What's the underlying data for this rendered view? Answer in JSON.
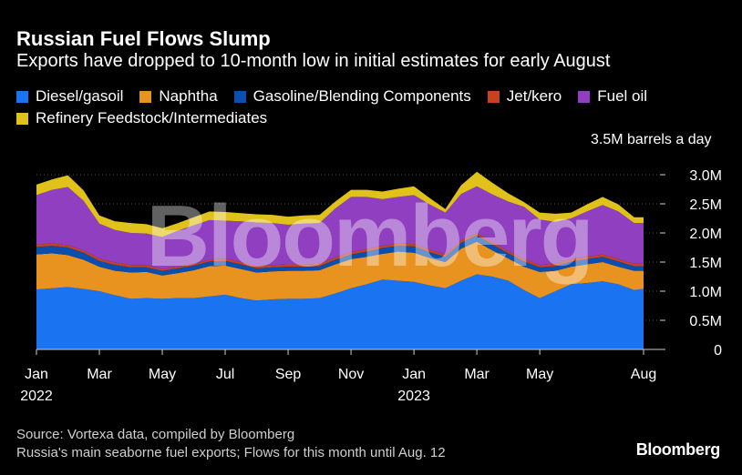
{
  "title": "Russian Fuel Flows Slump",
  "subtitle": "Exports have dropped to 10-month low in initial estimates for early August",
  "unit_label": "3.5M barrels a day",
  "watermark": "Bloomberg",
  "source_line1": "Source: Vortexa data, compiled by Bloomberg",
  "source_line2": "Russia's main seaborne fuel exports; Flows for this month until Aug. 12",
  "brand": "Bloomberg",
  "colors": {
    "diesel": "#1a73f0",
    "naphtha": "#e8931f",
    "gasoline": "#0a4fb0",
    "jet": "#c8421f",
    "fuel_oil": "#8f3fc0",
    "feedstock": "#e0c21a",
    "axis": "#cccccc",
    "grid": "#555555"
  },
  "chart_data": {
    "type": "area",
    "stacked": true,
    "title": "Russian Fuel Flows Slump",
    "ylabel": "barrels a day",
    "ylim": [
      0,
      3.5
    ],
    "y_ticks": [
      {
        "value": 0,
        "label": "0"
      },
      {
        "value": 0.5,
        "label": "0.5M"
      },
      {
        "value": 1.0,
        "label": "1.0M"
      },
      {
        "value": 1.5,
        "label": "1.5M"
      },
      {
        "value": 2.0,
        "label": "2.0M"
      },
      {
        "value": 2.5,
        "label": "2.5M"
      },
      {
        "value": 3.0,
        "label": "3.0M"
      }
    ],
    "x": [
      0,
      0.5,
      1,
      1.5,
      2,
      2.5,
      3,
      3.5,
      4,
      4.5,
      5,
      5.5,
      6,
      6.5,
      7,
      7.5,
      8,
      8.5,
      9,
      9.5,
      10,
      10.5,
      11,
      11.5,
      12,
      12.5,
      13,
      13.5,
      14,
      14.5,
      15,
      15.5,
      16,
      16.5,
      17,
      17.5,
      18,
      18.5,
      19,
      19.3
    ],
    "x_ticks": [
      {
        "value": 0,
        "label": "Jan",
        "sublabel": "2022"
      },
      {
        "value": 2,
        "label": "Mar",
        "sublabel": ""
      },
      {
        "value": 4,
        "label": "May",
        "sublabel": ""
      },
      {
        "value": 6,
        "label": "Jul",
        "sublabel": ""
      },
      {
        "value": 8,
        "label": "Sep",
        "sublabel": ""
      },
      {
        "value": 10,
        "label": "Nov",
        "sublabel": ""
      },
      {
        "value": 12,
        "label": "Jan",
        "sublabel": "2023"
      },
      {
        "value": 14,
        "label": "Mar",
        "sublabel": ""
      },
      {
        "value": 16,
        "label": "May",
        "sublabel": ""
      },
      {
        "value": 19.3,
        "label": "Aug",
        "sublabel": ""
      }
    ],
    "series": [
      {
        "name": "Diesel/gasoil",
        "color": "#1a73f0",
        "values": [
          1.03,
          1.05,
          1.07,
          1.04,
          1.0,
          0.93,
          0.87,
          0.88,
          0.87,
          0.88,
          0.88,
          0.91,
          0.94,
          0.88,
          0.84,
          0.86,
          0.87,
          0.87,
          0.88,
          0.96,
          1.05,
          1.12,
          1.2,
          1.18,
          1.16,
          1.1,
          1.05,
          1.18,
          1.29,
          1.25,
          1.18,
          1.02,
          0.88,
          1.0,
          1.12,
          1.14,
          1.17,
          1.12,
          1.02,
          1.04
        ]
      },
      {
        "name": "Naphtha",
        "color": "#e8931f",
        "values": [
          0.6,
          0.6,
          0.55,
          0.5,
          0.42,
          0.42,
          0.45,
          0.45,
          0.4,
          0.43,
          0.48,
          0.52,
          0.5,
          0.5,
          0.48,
          0.48,
          0.48,
          0.48,
          0.48,
          0.5,
          0.5,
          0.47,
          0.44,
          0.5,
          0.5,
          0.47,
          0.45,
          0.55,
          0.56,
          0.45,
          0.38,
          0.4,
          0.45,
          0.35,
          0.3,
          0.32,
          0.33,
          0.3,
          0.33,
          0.31
        ]
      },
      {
        "name": "Gasoline/Blending Components",
        "color": "#0a4fb0",
        "values": [
          0.13,
          0.13,
          0.13,
          0.12,
          0.1,
          0.1,
          0.09,
          0.08,
          0.08,
          0.08,
          0.08,
          0.08,
          0.08,
          0.08,
          0.07,
          0.07,
          0.07,
          0.07,
          0.07,
          0.08,
          0.08,
          0.09,
          0.1,
          0.1,
          0.11,
          0.1,
          0.09,
          0.1,
          0.11,
          0.1,
          0.09,
          0.09,
          0.08,
          0.08,
          0.09,
          0.09,
          0.09,
          0.09,
          0.08,
          0.08
        ]
      },
      {
        "name": "Jet/kero",
        "color": "#c8421f",
        "values": [
          0.04,
          0.04,
          0.04,
          0.04,
          0.04,
          0.04,
          0.04,
          0.04,
          0.03,
          0.03,
          0.03,
          0.03,
          0.04,
          0.04,
          0.04,
          0.04,
          0.04,
          0.04,
          0.04,
          0.04,
          0.04,
          0.04,
          0.04,
          0.04,
          0.04,
          0.04,
          0.04,
          0.04,
          0.04,
          0.04,
          0.04,
          0.04,
          0.04,
          0.04,
          0.04,
          0.04,
          0.04,
          0.04,
          0.04,
          0.04
        ]
      },
      {
        "name": "Fuel oil",
        "color": "#8f3fc0",
        "values": [
          0.85,
          0.92,
          1.0,
          0.85,
          0.6,
          0.56,
          0.55,
          0.54,
          0.55,
          0.62,
          0.66,
          0.68,
          0.65,
          0.7,
          0.75,
          0.72,
          0.68,
          0.7,
          0.7,
          0.84,
          0.95,
          0.9,
          0.8,
          0.8,
          0.84,
          0.78,
          0.72,
          0.8,
          0.8,
          0.82,
          0.85,
          0.9,
          0.78,
          0.72,
          0.7,
          0.78,
          0.85,
          0.82,
          0.7,
          0.7
        ]
      },
      {
        "name": "Refinery Feedstock/Intermediates",
        "color": "#e0c21a",
        "values": [
          0.18,
          0.18,
          0.2,
          0.18,
          0.14,
          0.15,
          0.17,
          0.16,
          0.15,
          0.13,
          0.14,
          0.15,
          0.15,
          0.14,
          0.14,
          0.14,
          0.14,
          0.14,
          0.14,
          0.12,
          0.12,
          0.12,
          0.13,
          0.14,
          0.15,
          0.11,
          0.06,
          0.15,
          0.25,
          0.2,
          0.14,
          0.08,
          0.12,
          0.14,
          0.1,
          0.12,
          0.14,
          0.12,
          0.1,
          0.1
        ]
      }
    ]
  }
}
